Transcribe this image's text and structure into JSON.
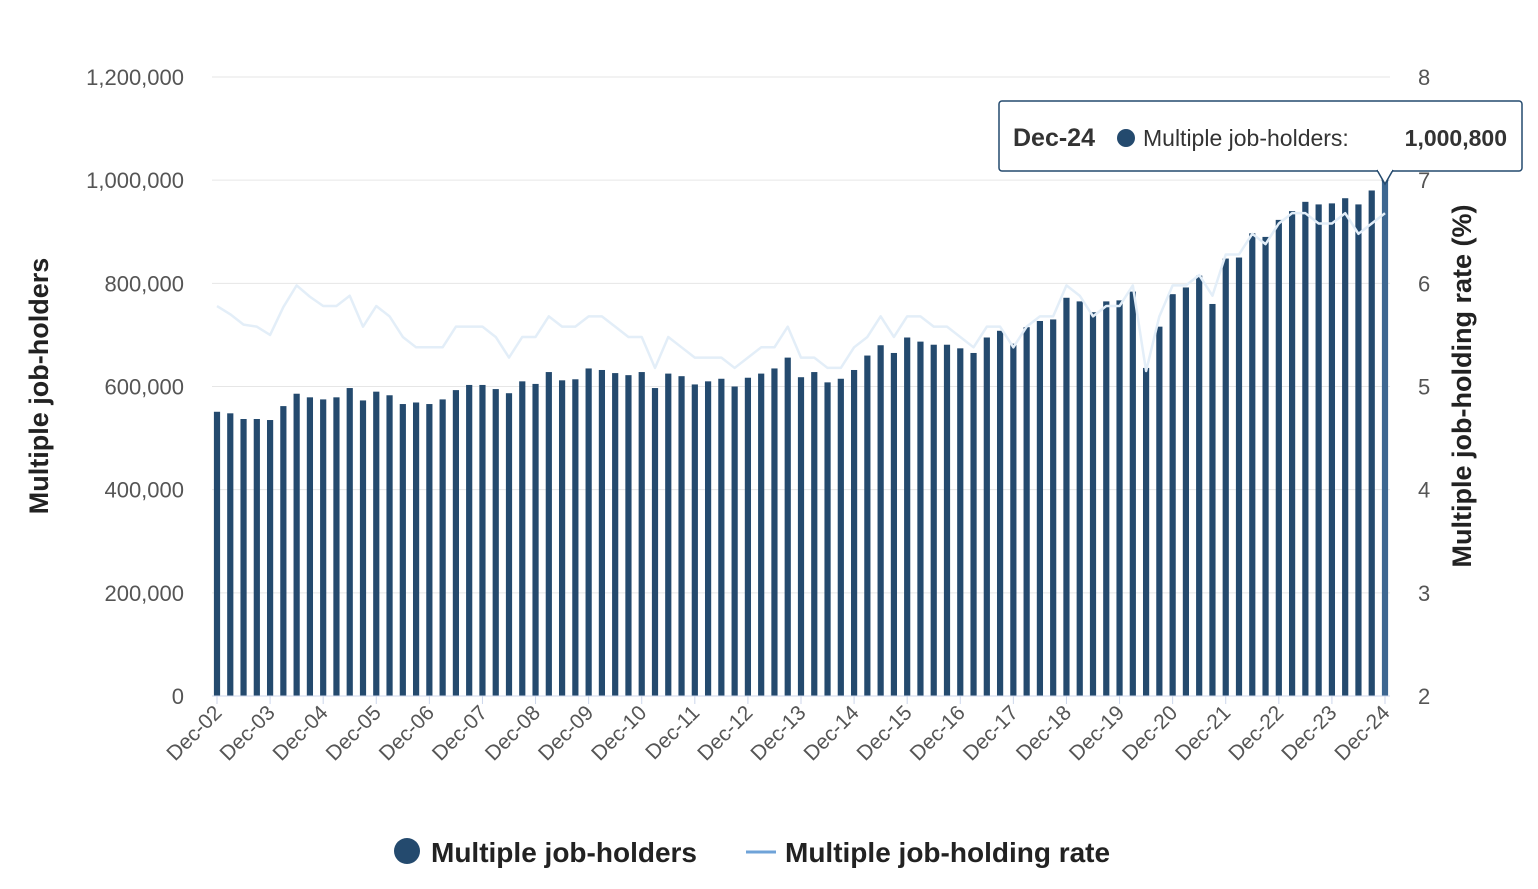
{
  "chart_data": {
    "type": "bar",
    "x_tick_labels": [
      "Dec-02",
      "Dec-03",
      "Dec-04",
      "Dec-05",
      "Dec-06",
      "Dec-07",
      "Dec-08",
      "Dec-09",
      "Dec-10",
      "Dec-11",
      "Dec-12",
      "Dec-13",
      "Dec-14",
      "Dec-15",
      "Dec-16",
      "Dec-17",
      "Dec-18",
      "Dec-19",
      "Dec-20",
      "Dec-21",
      "Dec-22",
      "Dec-23",
      "Dec-24"
    ],
    "y_left": {
      "label": "Multiple job-holders",
      "ticks": [
        "0",
        "200,000",
        "400,000",
        "600,000",
        "800,000",
        "1,000,000",
        "1,200,000"
      ],
      "range": [
        0,
        1200000
      ]
    },
    "y_right": {
      "label": "Multiple job-holding rate (%)",
      "ticks": [
        "2",
        "3",
        "4",
        "5",
        "6",
        "7",
        "8"
      ],
      "range": [
        2,
        8
      ]
    },
    "grid": true,
    "series": [
      {
        "name": "Multiple job-holders",
        "type": "bar",
        "color": "#244a6e",
        "values": [
          551000,
          548000,
          537000,
          537000,
          535000,
          562000,
          586000,
          579000,
          575000,
          579000,
          597000,
          573000,
          590000,
          583000,
          566000,
          569000,
          566000,
          575000,
          593000,
          603000,
          603000,
          595000,
          587000,
          610000,
          605000,
          628000,
          612000,
          614000,
          635000,
          632000,
          626000,
          622000,
          628000,
          597000,
          625000,
          620000,
          604000,
          610000,
          615000,
          600000,
          617000,
          625000,
          635000,
          656000,
          618000,
          628000,
          608000,
          615000,
          632000,
          660000,
          680000,
          665000,
          695000,
          687000,
          681000,
          681000,
          674000,
          665000,
          695000,
          708000,
          683000,
          715000,
          727000,
          730000,
          772000,
          765000,
          744000,
          765000,
          767000,
          784000,
          636000,
          716000,
          779000,
          792000,
          815000,
          760000,
          848000,
          850000,
          897000,
          890000,
          923000,
          940000,
          958000,
          953000,
          955000,
          965000,
          953000,
          980000,
          1000800
        ]
      },
      {
        "name": "Multiple job-holding rate",
        "type": "line",
        "color": "#e3eef8",
        "values": [
          5.78,
          5.7,
          5.6,
          5.58,
          5.5,
          5.77,
          5.98,
          5.87,
          5.78,
          5.78,
          5.88,
          5.58,
          5.78,
          5.68,
          5.48,
          5.38,
          5.38,
          5.38,
          5.58,
          5.58,
          5.58,
          5.48,
          5.28,
          5.48,
          5.48,
          5.68,
          5.58,
          5.58,
          5.68,
          5.68,
          5.58,
          5.48,
          5.48,
          5.18,
          5.48,
          5.38,
          5.28,
          5.28,
          5.28,
          5.18,
          5.28,
          5.38,
          5.38,
          5.58,
          5.28,
          5.28,
          5.18,
          5.18,
          5.38,
          5.48,
          5.68,
          5.48,
          5.68,
          5.68,
          5.58,
          5.58,
          5.48,
          5.38,
          5.58,
          5.58,
          5.38,
          5.58,
          5.68,
          5.68,
          5.98,
          5.88,
          5.68,
          5.78,
          5.78,
          5.98,
          5.15,
          5.68,
          5.98,
          5.98,
          6.08,
          5.88,
          6.28,
          6.28,
          6.48,
          6.38,
          6.58,
          6.68,
          6.68,
          6.58,
          6.58,
          6.68,
          6.48,
          6.58,
          6.68
        ]
      }
    ],
    "legend": {
      "placement": "bottom-center",
      "items": [
        "Multiple job-holders",
        "Multiple job-holding rate"
      ]
    },
    "tooltip": {
      "date": "Dec-24",
      "label": "Multiple job-holders:",
      "value": "1,000,800"
    }
  }
}
